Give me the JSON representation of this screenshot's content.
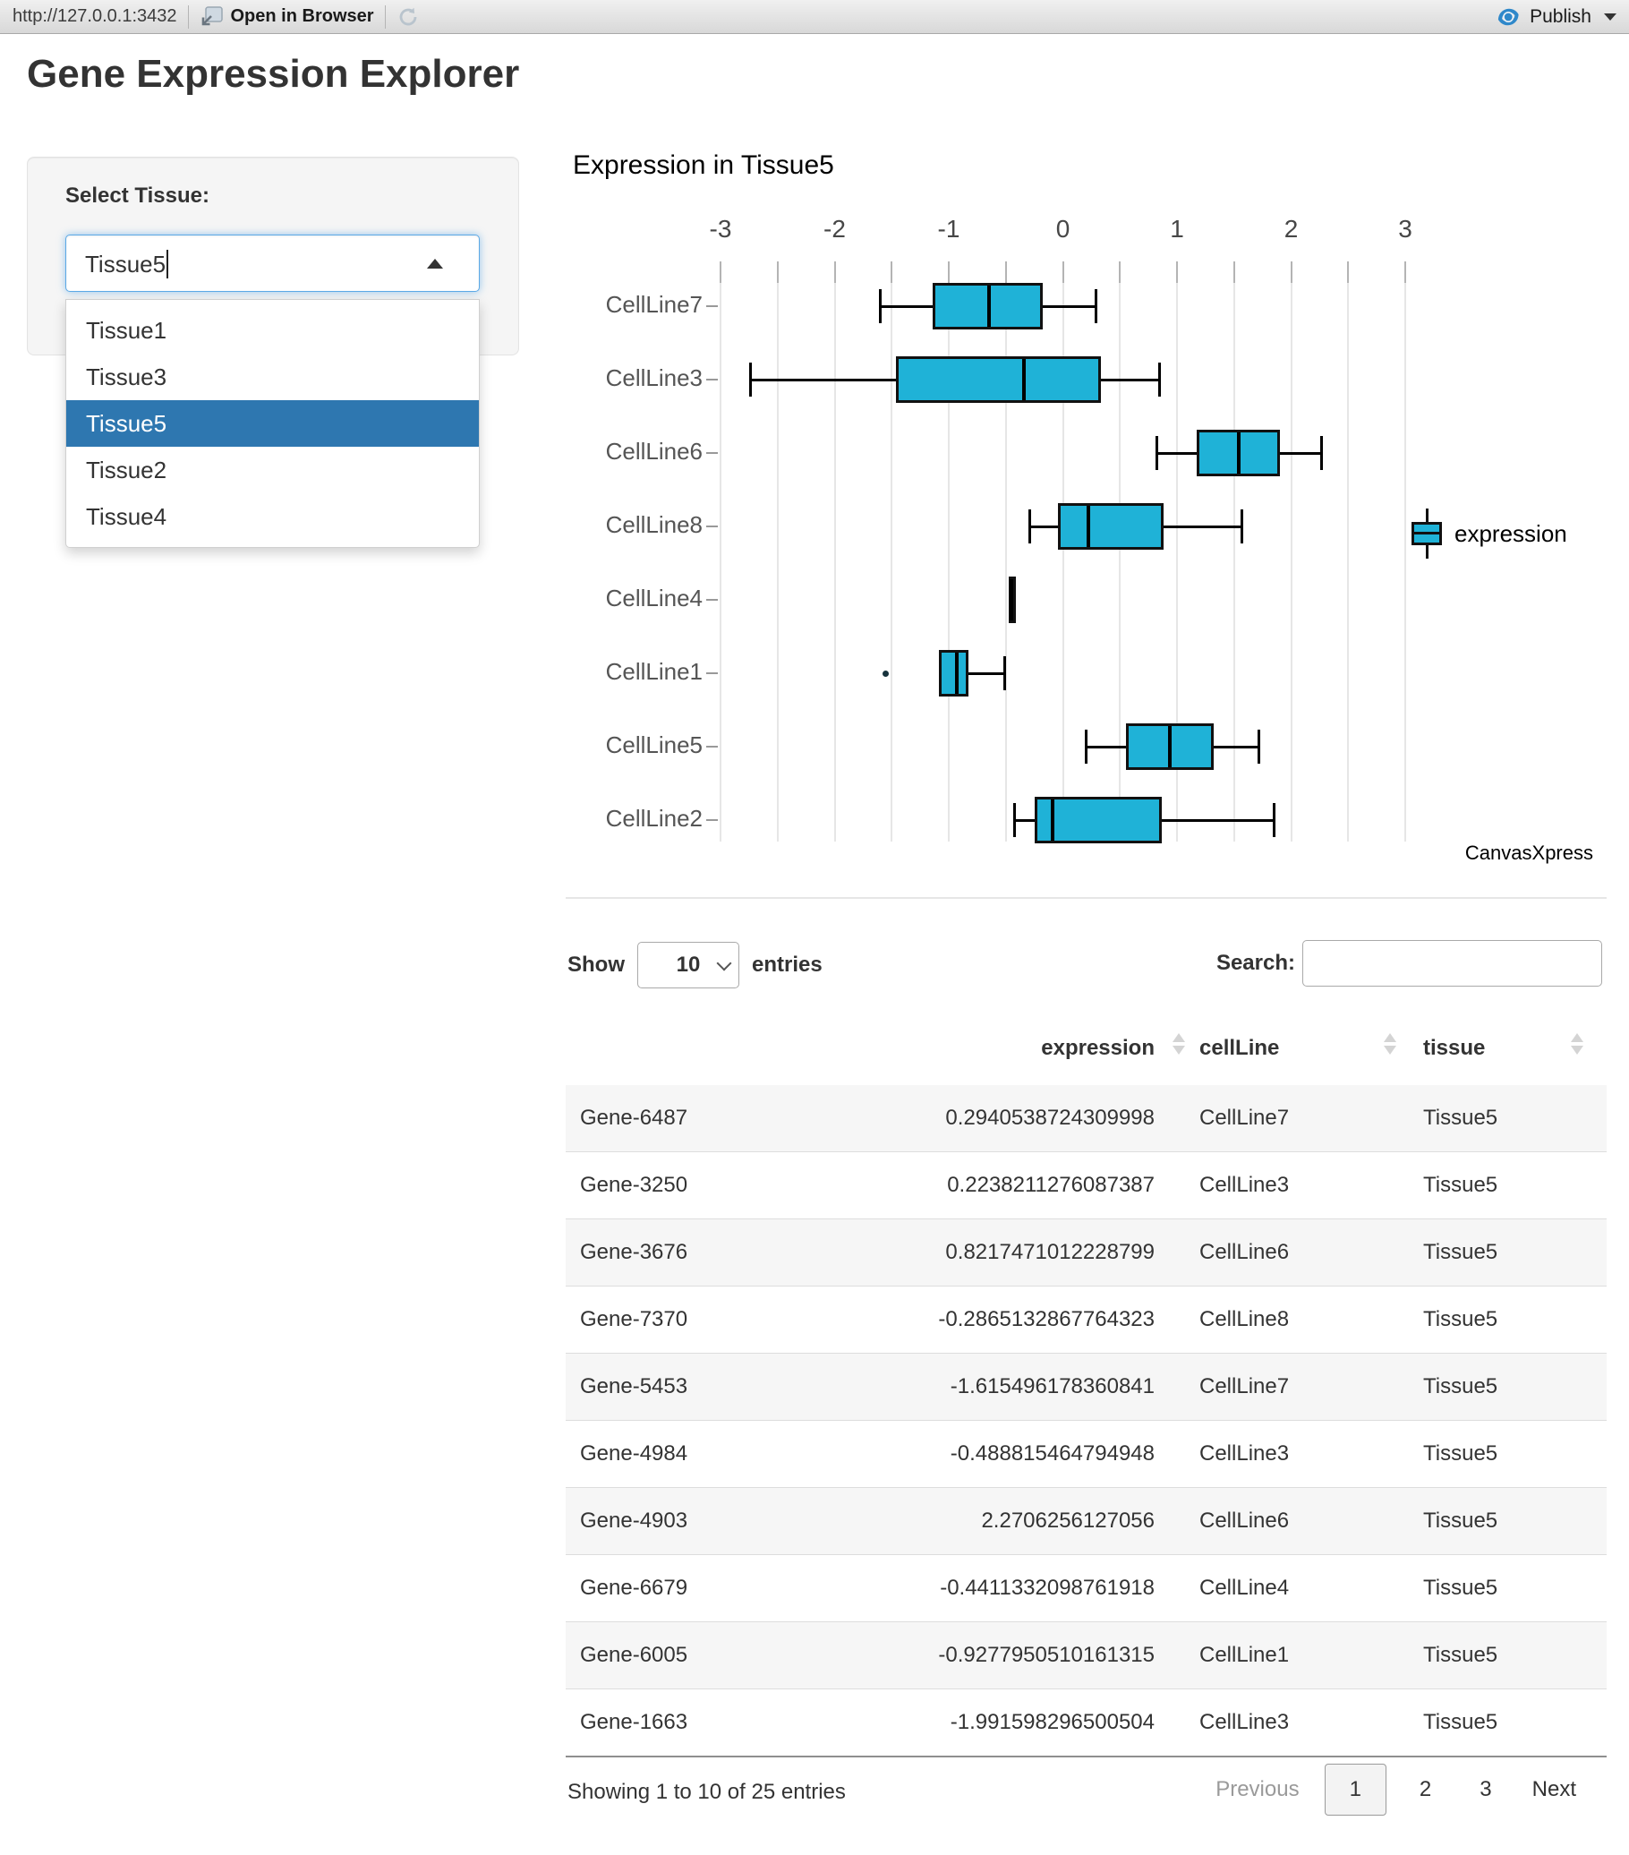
{
  "browser_bar": {
    "url": "http://127.0.0.1:3432",
    "open_in_browser": "Open in Browser",
    "publish": "Publish"
  },
  "page": {
    "title": "Gene Expression Explorer"
  },
  "sidebar": {
    "label": "Select Tissue:",
    "selected": "Tissue5",
    "options": [
      "Tissue1",
      "Tissue3",
      "Tissue5",
      "Tissue2",
      "Tissue4"
    ],
    "active_option": "Tissue5"
  },
  "chart_data": {
    "type": "boxplot",
    "orientation": "horizontal",
    "title": "Expression in Tissue5",
    "xlabel": "",
    "ylabel": "",
    "xlim": [
      -3,
      3
    ],
    "x_ticks": [
      -3,
      -2,
      -1,
      0,
      1,
      2,
      3
    ],
    "minor_gridline_step": 0.5,
    "grid": true,
    "legend": {
      "label": "expression",
      "position": "right",
      "color": "#1fb2d7"
    },
    "watermark": "CanvasXpress",
    "categories": [
      "CellLine7",
      "CellLine3",
      "CellLine6",
      "CellLine8",
      "CellLine4",
      "CellLine1",
      "CellLine5",
      "CellLine2"
    ],
    "series": [
      {
        "name": "expression",
        "boxes": [
          {
            "category": "CellLine7",
            "min": -1.6,
            "q1": -1.14,
            "median": -0.65,
            "q3": -0.18,
            "max": 0.29,
            "outliers": []
          },
          {
            "category": "CellLine3",
            "min": -2.74,
            "q1": -1.46,
            "median": -0.34,
            "q3": 0.33,
            "max": 0.85,
            "outliers": []
          },
          {
            "category": "CellLine6",
            "min": 0.82,
            "q1": 1.17,
            "median": 1.54,
            "q3": 1.9,
            "max": 2.27,
            "outliers": []
          },
          {
            "category": "CellLine8",
            "min": -0.29,
            "q1": -0.04,
            "median": 0.22,
            "q3": 0.88,
            "max": 1.57,
            "outliers": []
          },
          {
            "category": "CellLine4",
            "min": -0.44,
            "q1": -0.44,
            "median": -0.44,
            "q3": -0.44,
            "max": -0.44,
            "outliers": []
          },
          {
            "category": "CellLine1",
            "min": -1.09,
            "q1": -1.09,
            "median": -0.93,
            "q3": -0.83,
            "max": -0.51,
            "outliers": [
              -1.55
            ]
          },
          {
            "category": "CellLine5",
            "min": 0.2,
            "q1": 0.55,
            "median": 0.94,
            "q3": 1.32,
            "max": 1.72,
            "outliers": []
          },
          {
            "category": "CellLine2",
            "min": -0.42,
            "q1": -0.25,
            "median": -0.09,
            "q3": 0.87,
            "max": 1.85,
            "outliers": []
          }
        ]
      }
    ]
  },
  "table": {
    "length_label_before": "Show",
    "length_value": "10",
    "length_label_after": "entries",
    "search_label": "Search:",
    "search_value": "",
    "columns": [
      {
        "label": "",
        "sortable": false
      },
      {
        "label": "expression",
        "sortable": true
      },
      {
        "label": "cellLine",
        "sortable": true
      },
      {
        "label": "tissue",
        "sortable": true
      }
    ],
    "rows": [
      {
        "gene": "Gene-6487",
        "expression": "0.2940538724309998",
        "cellLine": "CellLine7",
        "tissue": "Tissue5"
      },
      {
        "gene": "Gene-3250",
        "expression": "0.2238211276087387",
        "cellLine": "CellLine3",
        "tissue": "Tissue5"
      },
      {
        "gene": "Gene-3676",
        "expression": "0.8217471012228799",
        "cellLine": "CellLine6",
        "tissue": "Tissue5"
      },
      {
        "gene": "Gene-7370",
        "expression": "-0.2865132867764323",
        "cellLine": "CellLine8",
        "tissue": "Tissue5"
      },
      {
        "gene": "Gene-5453",
        "expression": "-1.615496178360841",
        "cellLine": "CellLine7",
        "tissue": "Tissue5"
      },
      {
        "gene": "Gene-4984",
        "expression": "-0.488815464794948",
        "cellLine": "CellLine3",
        "tissue": "Tissue5"
      },
      {
        "gene": "Gene-4903",
        "expression": "2.2706256127056",
        "cellLine": "CellLine6",
        "tissue": "Tissue5"
      },
      {
        "gene": "Gene-6679",
        "expression": "-0.4411332098761918",
        "cellLine": "CellLine4",
        "tissue": "Tissue5"
      },
      {
        "gene": "Gene-6005",
        "expression": "-0.9277950510161315",
        "cellLine": "CellLine1",
        "tissue": "Tissue5"
      },
      {
        "gene": "Gene-1663",
        "expression": "-1.991598296500504",
        "cellLine": "CellLine3",
        "tissue": "Tissue5"
      }
    ],
    "info": "Showing 1 to 10 of 25 entries",
    "pagination": {
      "previous": "Previous",
      "pages": [
        "1",
        "2",
        "3"
      ],
      "current": "1",
      "next": "Next"
    }
  }
}
